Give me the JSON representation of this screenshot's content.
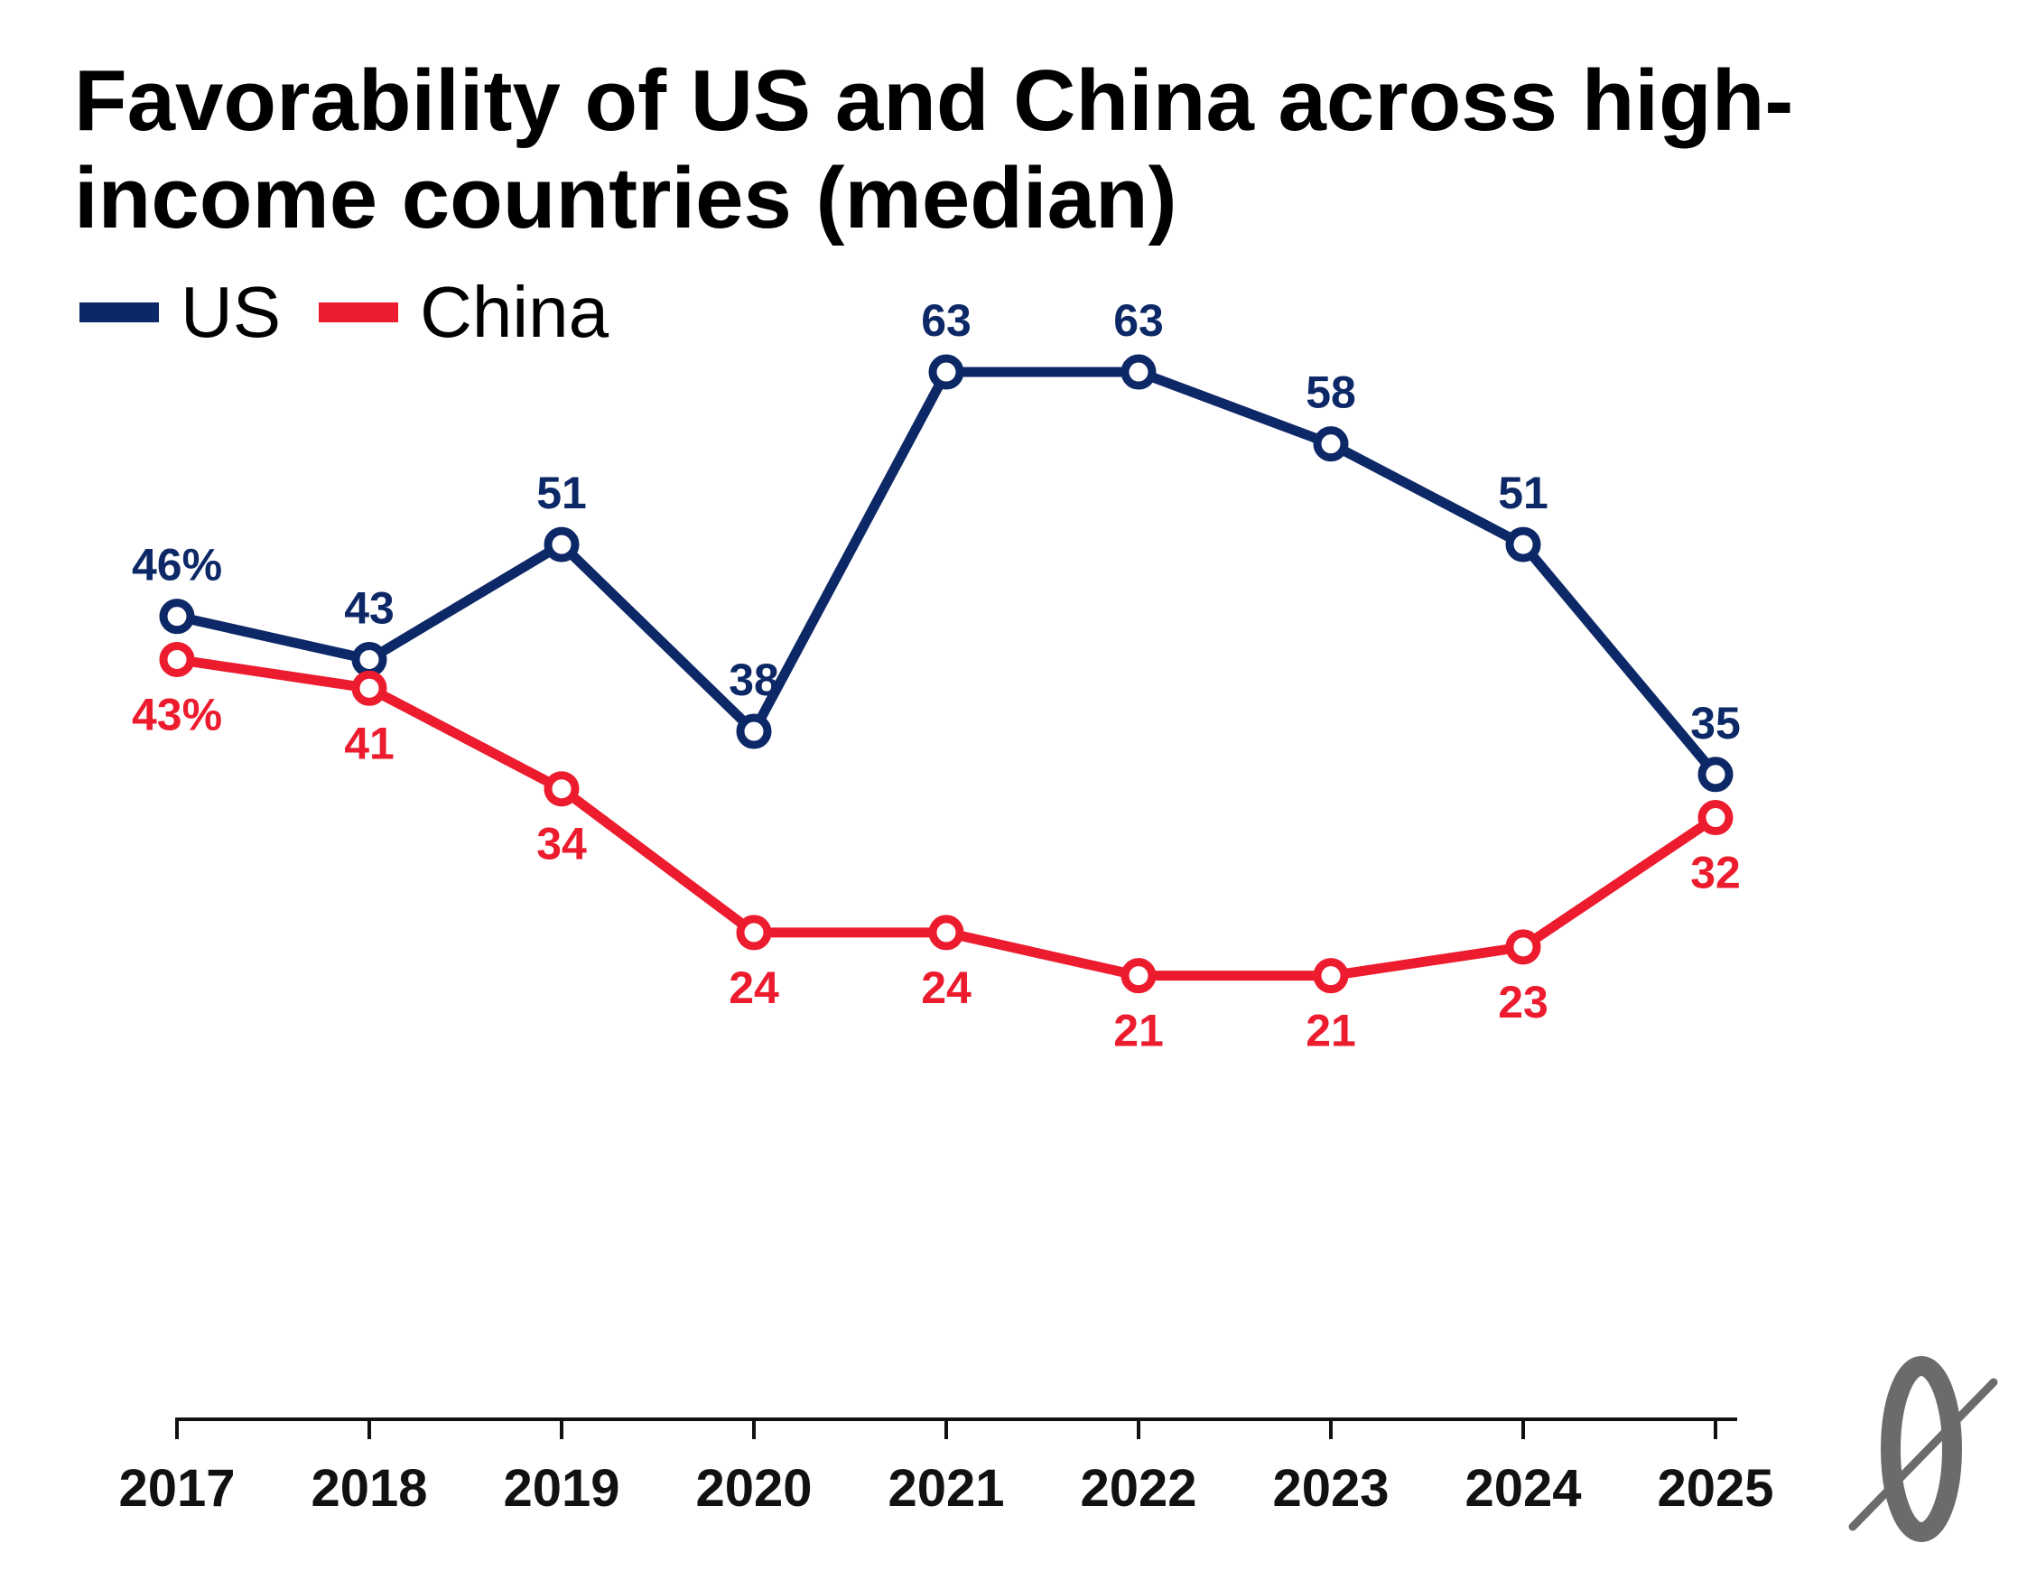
{
  "chart_data": {
    "type": "line",
    "title": "Favorability of US and China across high-income countries (median)",
    "x": [
      "2017",
      "2018",
      "2019",
      "2020",
      "2021",
      "2022",
      "2023",
      "2024",
      "2025"
    ],
    "series": [
      {
        "name": "US",
        "color": "#0d2867",
        "values": [
          46,
          43,
          51,
          38,
          63,
          63,
          58,
          51,
          35
        ],
        "labels": [
          "46%",
          "43",
          "51",
          "38",
          "63",
          "63",
          "58",
          "51",
          "35"
        ],
        "label_position": "above"
      },
      {
        "name": "China",
        "color": "#ec1c2e",
        "values": [
          43,
          41,
          34,
          24,
          24,
          21,
          21,
          23,
          32
        ],
        "labels": [
          "43%",
          "41",
          "34",
          "24",
          "24",
          "21",
          "21",
          "23",
          "32"
        ],
        "label_position": "below"
      }
    ],
    "ylim": [
      0,
      100
    ],
    "grid": false,
    "legend": "top-left"
  },
  "logo": {
    "icon": "strikethrough-zero-logo-icon"
  }
}
